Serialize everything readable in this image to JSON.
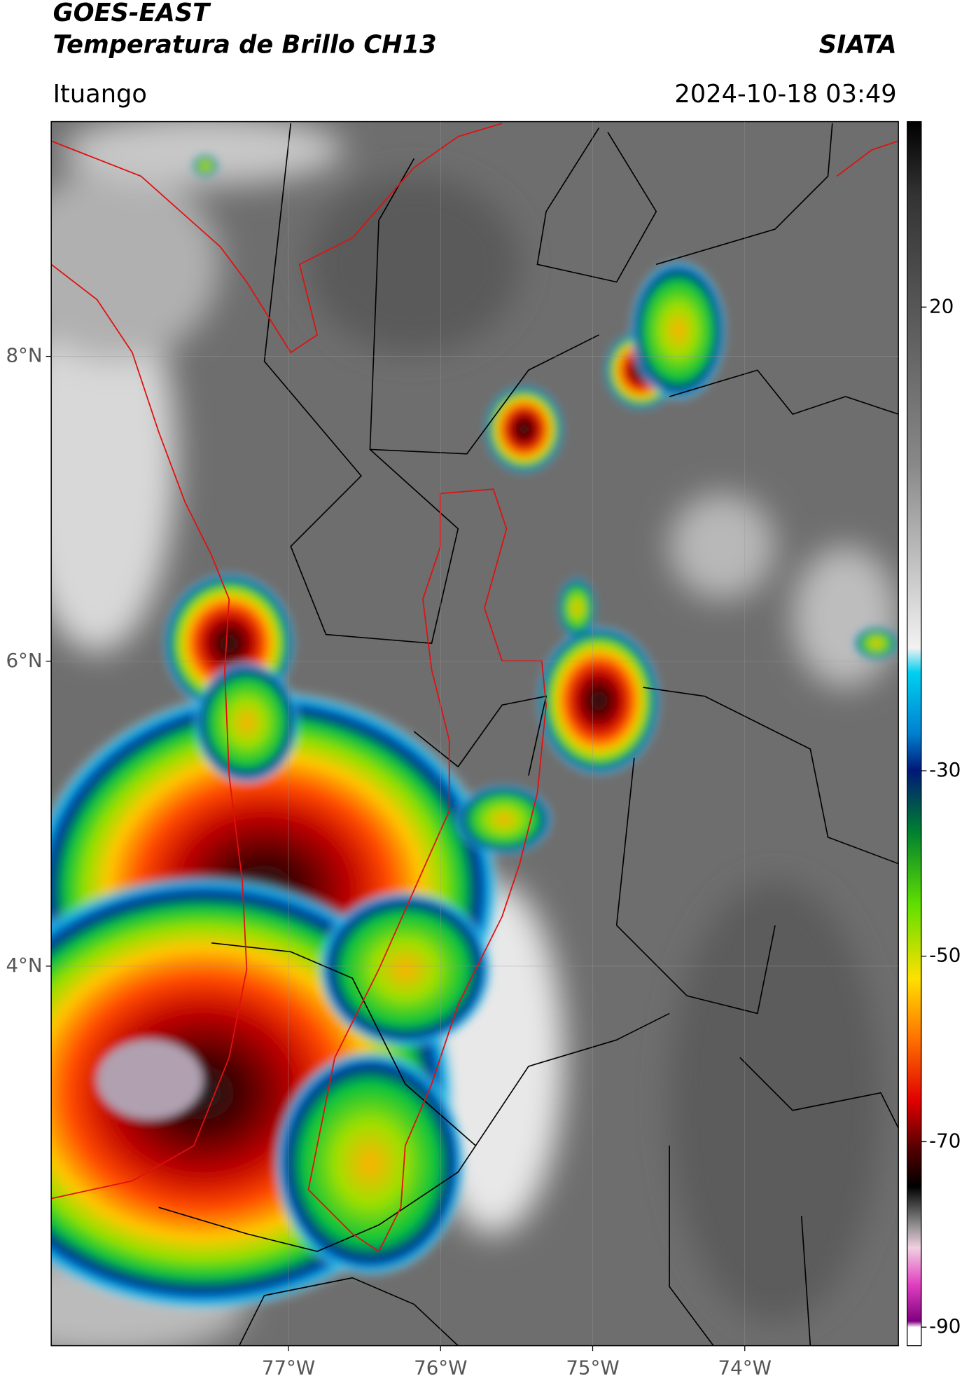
{
  "header": {
    "title_line1": "GOES-EAST",
    "title_line2": "Temperatura de Brillo CH13",
    "org": "SIATA",
    "location": "Ituango",
    "datetime": "2024-10-18 03:49"
  },
  "map": {
    "xlim": [
      -78.56,
      -72.99
    ],
    "ylim": [
      1.51,
      9.54
    ],
    "xticks": [
      {
        "value": -77,
        "label": "77°W"
      },
      {
        "value": -76,
        "label": "76°W"
      },
      {
        "value": -75,
        "label": "75°W"
      },
      {
        "value": -74,
        "label": "74°W"
      }
    ],
    "yticks": [
      {
        "value": 8,
        "label": "8°N"
      },
      {
        "value": 6,
        "label": "6°N"
      },
      {
        "value": 4,
        "label": "4°N"
      }
    ]
  },
  "colorbar": {
    "lim": [
      -92,
      40
    ],
    "ticks": [
      20,
      -30,
      -50,
      -70,
      -90
    ]
  }
}
